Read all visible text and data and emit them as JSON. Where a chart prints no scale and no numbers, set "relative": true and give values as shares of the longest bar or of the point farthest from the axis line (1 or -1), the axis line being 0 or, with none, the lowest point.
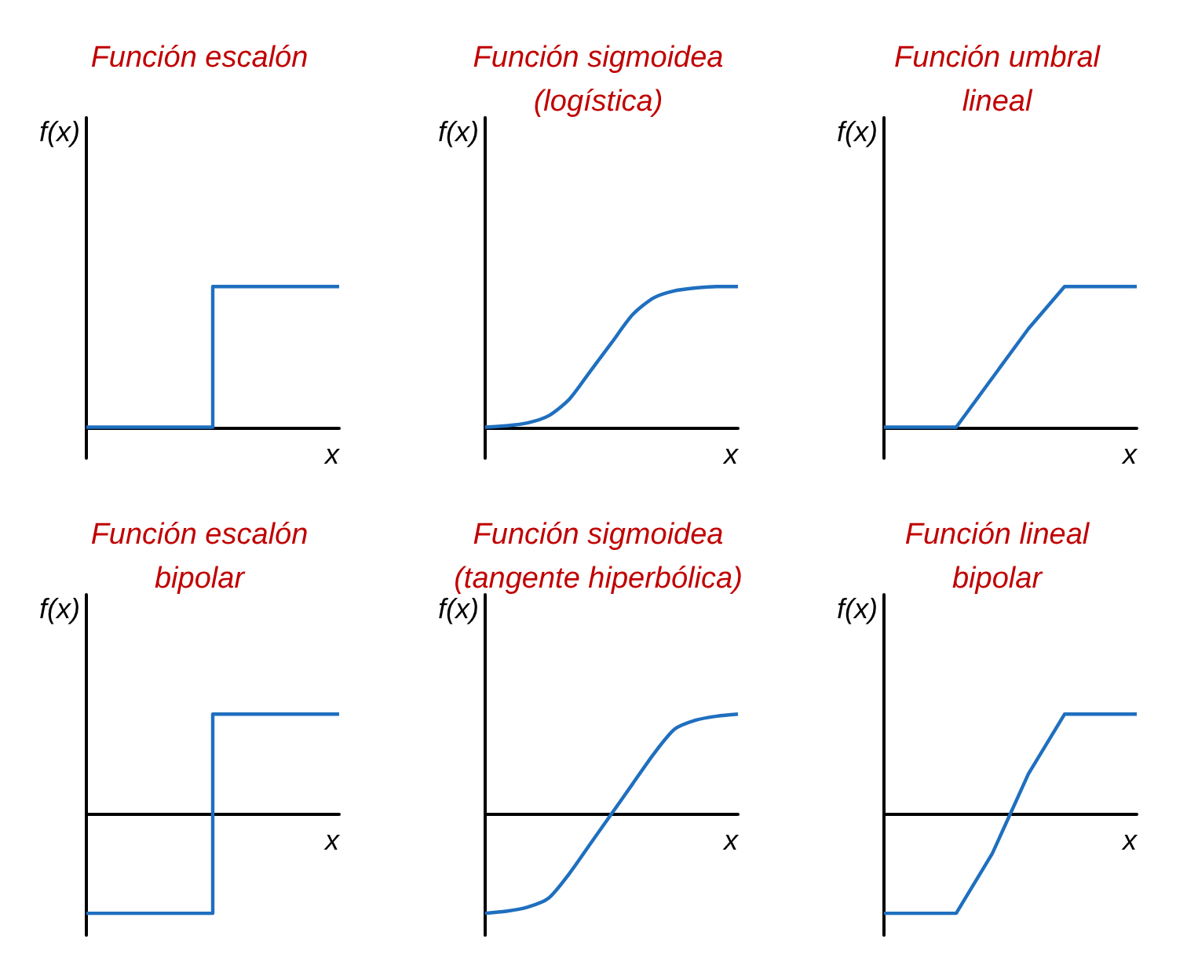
{
  "chart_data": [
    {
      "type": "step",
      "title": "Función escalón",
      "xlabel": "x",
      "ylabel": "f(x)",
      "relative": true,
      "marker": "none",
      "categories": [
        null,
        null,
        null,
        null,
        null,
        null,
        null,
        null,
        null
      ],
      "series": [
        {
          "color": "#1f6fbf",
          "values": [
            0,
            0,
            0,
            0,
            1,
            1,
            1,
            1,
            1
          ]
        }
      ]
    },
    {
      "type": "line",
      "title": "Función sigmoidea\n(logística)",
      "xlabel": "x",
      "ylabel": "f(x)",
      "relative": true,
      "marker": "none",
      "categories": [
        null,
        null,
        null,
        null,
        null,
        null,
        null,
        null,
        null,
        null,
        null,
        null,
        null
      ],
      "series": [
        {
          "color": "#1f6fbf",
          "values": [
            0,
            0.01,
            0.03,
            0.08,
            0.2,
            0.4,
            0.6,
            0.8,
            0.92,
            0.97,
            0.99,
            1,
            1
          ]
        }
      ]
    },
    {
      "type": "line",
      "title": "Función umbral\nlineal",
      "xlabel": "x",
      "ylabel": "f(x)",
      "relative": true,
      "marker": "none",
      "categories": [
        null,
        null,
        null,
        null,
        null,
        null,
        null,
        null
      ],
      "series": [
        {
          "color": "#1f6fbf",
          "values": [
            0,
            0,
            0,
            0.35,
            0.7,
            1,
            1,
            1
          ]
        }
      ]
    },
    {
      "type": "step",
      "title": "Función escalón\nbipolar",
      "xlabel": "x",
      "ylabel": "f(x)",
      "relative": true,
      "marker": "none",
      "categories": [
        null,
        null,
        null,
        null,
        null,
        null,
        null,
        null,
        null
      ],
      "series": [
        {
          "color": "#1f6fbf",
          "values": [
            -1,
            -1,
            -1,
            -1,
            1,
            1,
            1,
            1,
            1
          ]
        }
      ]
    },
    {
      "type": "line",
      "title": "Función sigmoidea\n(tangente hiperbólica)",
      "xlabel": "x",
      "ylabel": "f(x)",
      "relative": true,
      "marker": "none",
      "categories": [
        null,
        null,
        null,
        null,
        null,
        null,
        null,
        null,
        null,
        null,
        null,
        null,
        null
      ],
      "series": [
        {
          "color": "#1f6fbf",
          "values": [
            -1,
            -0.98,
            -0.94,
            -0.85,
            -0.6,
            -0.3,
            0,
            0.3,
            0.6,
            0.85,
            0.94,
            0.98,
            1
          ]
        }
      ]
    },
    {
      "type": "line",
      "title": "Función lineal\nbipolar",
      "xlabel": "x",
      "ylabel": "f(x)",
      "relative": true,
      "marker": "none",
      "categories": [
        null,
        null,
        null,
        null,
        null,
        null,
        null,
        null
      ],
      "series": [
        {
          "color": "#1f6fbf",
          "values": [
            -1,
            -1,
            -1,
            -0.4,
            0.4,
            1,
            1,
            1
          ]
        }
      ]
    }
  ]
}
